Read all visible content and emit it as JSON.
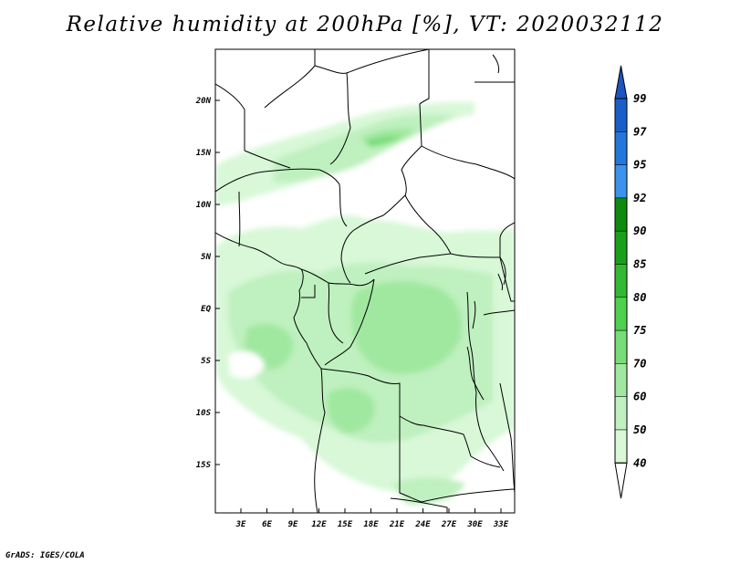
{
  "title": "Relative humidity at 200hPa [%], VT: 2020032112",
  "footer": "GrADS: IGES/COLA",
  "map": {
    "lat_labels": [
      "20N",
      "15N",
      "10N",
      "5N",
      "EQ",
      "5S",
      "10S",
      "15S"
    ],
    "lon_labels": [
      "3E",
      "6E",
      "9E",
      "12E",
      "15E",
      "18E",
      "21E",
      "24E",
      "27E",
      "30E",
      "33E"
    ]
  },
  "colorbar": {
    "labels": [
      "99",
      "97",
      "95",
      "92",
      "90",
      "85",
      "80",
      "75",
      "70",
      "60",
      "50",
      "40"
    ],
    "colors": [
      "#1a5fc8",
      "#2377db",
      "#3b93ec",
      "#0e8a0e",
      "#1a9f1a",
      "#33b833",
      "#4fd04f",
      "#78dc78",
      "#a0e8a0",
      "#bff0bf",
      "#d8f8d8",
      "#f0fff0"
    ],
    "top_color": "#1b55bd",
    "bottom_color": "#ffffff"
  }
}
